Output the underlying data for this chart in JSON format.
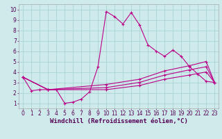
{
  "xlabel": "Windchill (Refroidissement éolien,°C)",
  "bg_color": "#ceeaea",
  "grid_color": "#aad4d4",
  "line_color": "#bb0088",
  "xlim": [
    -0.5,
    23.5
  ],
  "ylim": [
    0.5,
    10.5
  ],
  "xticks": [
    0,
    1,
    2,
    3,
    4,
    5,
    6,
    7,
    8,
    9,
    10,
    11,
    12,
    13,
    14,
    15,
    16,
    17,
    18,
    19,
    20,
    21,
    22,
    23
  ],
  "yticks": [
    1,
    2,
    3,
    4,
    5,
    6,
    7,
    8,
    9,
    10
  ],
  "line1_x": [
    0,
    1,
    2,
    3,
    4,
    5,
    6,
    7,
    8,
    9,
    10,
    11,
    12,
    13,
    14,
    15,
    16,
    17,
    18,
    19,
    20,
    21,
    22,
    23
  ],
  "line1_y": [
    3.5,
    2.2,
    2.3,
    2.3,
    2.3,
    1.0,
    1.1,
    1.4,
    2.1,
    4.5,
    9.8,
    9.3,
    8.6,
    9.7,
    8.5,
    6.6,
    6.0,
    5.5,
    6.1,
    5.5,
    4.5,
    3.8,
    3.1,
    3.0
  ],
  "line2_x": [
    0,
    3,
    10,
    14,
    17,
    20,
    22,
    23
  ],
  "line2_y": [
    3.5,
    2.3,
    2.8,
    3.3,
    4.1,
    4.6,
    5.0,
    3.0
  ],
  "line3_x": [
    0,
    3,
    10,
    14,
    17,
    20,
    22,
    23
  ],
  "line3_y": [
    3.5,
    2.3,
    2.5,
    3.0,
    3.7,
    4.2,
    4.5,
    3.0
  ],
  "line4_x": [
    0,
    3,
    10,
    14,
    17,
    20,
    22,
    23
  ],
  "line4_y": [
    3.5,
    2.3,
    2.3,
    2.7,
    3.3,
    3.7,
    4.0,
    3.0
  ],
  "xlabel_fontsize": 6.5,
  "tick_fontsize": 5.5
}
